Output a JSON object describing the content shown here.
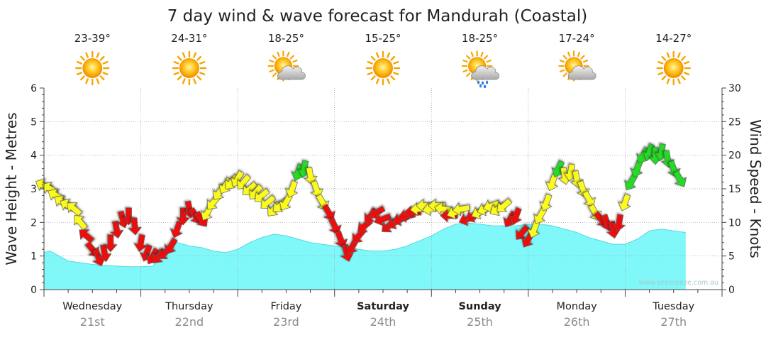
{
  "chart_data": {
    "type": "area",
    "title": "7 day wind & wave forecast for Mandurah (Coastal)",
    "ylabel": "Wave Height - Metres",
    "y2label": "Wind Speed - Knots",
    "watermark": "www.seabreeze.com.au",
    "ylim": [
      0,
      6
    ],
    "y2lim": [
      0,
      30
    ],
    "y_ticks": [
      "0",
      "1",
      "2",
      "3",
      "4",
      "5",
      "6"
    ],
    "y2_ticks": [
      "0",
      "5",
      "10",
      "15",
      "20",
      "25",
      "30"
    ],
    "grid": true,
    "days": [
      {
        "name": "Wednesday",
        "date": "21st",
        "temp": "23-39°",
        "weather": "sun-icon",
        "bold": false
      },
      {
        "name": "Thursday",
        "date": "22nd",
        "temp": "24-31°",
        "weather": "sun-icon",
        "bold": false
      },
      {
        "name": "Friday",
        "date": "23rd",
        "temp": "18-25°",
        "weather": "sun-cloud-icon",
        "bold": false
      },
      {
        "name": "Saturday",
        "date": "24th",
        "temp": "15-25°",
        "weather": "sun-icon",
        "bold": true
      },
      {
        "name": "Sunday",
        "date": "25th",
        "temp": "18-25°",
        "weather": "sun-rain-icon",
        "bold": true
      },
      {
        "name": "Monday",
        "date": "26th",
        "temp": "17-24°",
        "weather": "sun-cloud-icon",
        "bold": false
      },
      {
        "name": "Tuesday",
        "date": "27th",
        "temp": "14-27°",
        "weather": "sun-icon",
        "bold": false
      }
    ],
    "wave_height": [
      [
        0,
        1.1
      ],
      [
        0.25,
        1.15
      ],
      [
        0.5,
        1.05
      ],
      [
        0.75,
        0.95
      ],
      [
        1,
        0.85
      ],
      [
        1.5,
        0.8
      ],
      [
        2,
        0.75
      ],
      [
        2.5,
        0.72
      ],
      [
        3,
        0.7
      ],
      [
        3.5,
        0.68
      ],
      [
        4,
        0.68
      ],
      [
        4.5,
        0.7
      ],
      [
        4.75,
        0.95
      ],
      [
        5,
        1.2
      ],
      [
        5.25,
        1.35
      ],
      [
        5.5,
        1.4
      ],
      [
        6,
        1.3
      ],
      [
        6.5,
        1.25
      ],
      [
        7,
        1.15
      ],
      [
        7.5,
        1.1
      ],
      [
        8,
        1.2
      ],
      [
        8.5,
        1.4
      ],
      [
        9,
        1.55
      ],
      [
        9.5,
        1.65
      ],
      [
        10,
        1.6
      ],
      [
        10.5,
        1.5
      ],
      [
        11,
        1.4
      ],
      [
        11.5,
        1.35
      ],
      [
        12,
        1.3
      ],
      [
        12.5,
        1.25
      ],
      [
        13,
        1.2
      ],
      [
        13.5,
        1.15
      ],
      [
        14,
        1.15
      ],
      [
        14.5,
        1.2
      ],
      [
        15,
        1.3
      ],
      [
        15.5,
        1.45
      ],
      [
        16,
        1.6
      ],
      [
        16.5,
        1.8
      ],
      [
        17,
        1.95
      ],
      [
        17.5,
        1.98
      ],
      [
        18,
        1.95
      ],
      [
        18.5,
        1.9
      ],
      [
        19,
        1.9
      ],
      [
        19.5,
        1.9
      ],
      [
        20,
        1.95
      ],
      [
        20.5,
        1.95
      ],
      [
        21,
        1.9
      ],
      [
        21.5,
        1.8
      ],
      [
        22,
        1.7
      ],
      [
        22.5,
        1.55
      ],
      [
        23,
        1.45
      ],
      [
        23.5,
        1.35
      ],
      [
        24,
        1.35
      ],
      [
        24.5,
        1.5
      ],
      [
        25,
        1.75
      ],
      [
        25.5,
        1.8
      ],
      [
        26,
        1.75
      ],
      [
        26.5,
        1.7
      ]
    ],
    "wind": [
      {
        "t": 0,
        "spd": 15.5,
        "dir": 295,
        "c": "yellow"
      },
      {
        "t": 0.25,
        "spd": 15,
        "dir": 300,
        "c": "yellow"
      },
      {
        "t": 0.5,
        "spd": 14,
        "dir": 300,
        "c": "yellow"
      },
      {
        "t": 0.75,
        "spd": 13,
        "dir": 305,
        "c": "yellow"
      },
      {
        "t": 1,
        "spd": 12.5,
        "dir": 300,
        "c": "yellow"
      },
      {
        "t": 1.25,
        "spd": 12,
        "dir": 310,
        "c": "yellow"
      },
      {
        "t": 1.5,
        "spd": 10,
        "dir": 320,
        "c": "yellow"
      },
      {
        "t": 1.75,
        "spd": 8,
        "dir": 310,
        "c": "red"
      },
      {
        "t": 2,
        "spd": 6,
        "dir": 140,
        "c": "red"
      },
      {
        "t": 2.25,
        "spd": 4.8,
        "dir": 160,
        "c": "red"
      },
      {
        "t": 2.5,
        "spd": 5.5,
        "dir": 170,
        "c": "red"
      },
      {
        "t": 2.75,
        "spd": 7,
        "dir": 180,
        "c": "red"
      },
      {
        "t": 3,
        "spd": 9,
        "dir": 170,
        "c": "red"
      },
      {
        "t": 3.25,
        "spd": 10.5,
        "dir": 165,
        "c": "red"
      },
      {
        "t": 3.5,
        "spd": 11,
        "dir": 180,
        "c": "red"
      },
      {
        "t": 3.75,
        "spd": 9.5,
        "dir": 175,
        "c": "red"
      },
      {
        "t": 4,
        "spd": 7,
        "dir": 190,
        "c": "red"
      },
      {
        "t": 4.25,
        "spd": 5.5,
        "dir": 200,
        "c": "red"
      },
      {
        "t": 4.5,
        "spd": 5,
        "dir": 210,
        "c": "red"
      },
      {
        "t": 4.75,
        "spd": 5,
        "dir": 220,
        "c": "red"
      },
      {
        "t": 5,
        "spd": 5.5,
        "dir": 230,
        "c": "red"
      },
      {
        "t": 5.25,
        "spd": 6.5,
        "dir": 210,
        "c": "red"
      },
      {
        "t": 5.5,
        "spd": 9,
        "dir": 200,
        "c": "red"
      },
      {
        "t": 5.75,
        "spd": 11,
        "dir": 180,
        "c": "red"
      },
      {
        "t": 6,
        "spd": 12,
        "dir": 170,
        "c": "red"
      },
      {
        "t": 6.25,
        "spd": 11,
        "dir": 150,
        "c": "red"
      },
      {
        "t": 6.5,
        "spd": 10.5,
        "dir": 145,
        "c": "red"
      },
      {
        "t": 6.75,
        "spd": 11.5,
        "dir": 210,
        "c": "yellow"
      },
      {
        "t": 7,
        "spd": 13,
        "dir": 220,
        "c": "yellow"
      },
      {
        "t": 7.25,
        "spd": 14.5,
        "dir": 215,
        "c": "yellow"
      },
      {
        "t": 7.5,
        "spd": 15.5,
        "dir": 210,
        "c": "yellow"
      },
      {
        "t": 7.75,
        "spd": 16,
        "dir": 220,
        "c": "yellow"
      },
      {
        "t": 8,
        "spd": 16.5,
        "dir": 210,
        "c": "yellow"
      },
      {
        "t": 8.25,
        "spd": 16,
        "dir": 220,
        "c": "yellow"
      },
      {
        "t": 8.5,
        "spd": 15,
        "dir": 230,
        "c": "yellow"
      },
      {
        "t": 8.75,
        "spd": 14.5,
        "dir": 220,
        "c": "yellow"
      },
      {
        "t": 9,
        "spd": 14,
        "dir": 230,
        "c": "yellow"
      },
      {
        "t": 9.25,
        "spd": 13,
        "dir": 230,
        "c": "yellow"
      },
      {
        "t": 9.5,
        "spd": 12,
        "dir": 220,
        "c": "yellow"
      },
      {
        "t": 9.75,
        "spd": 12.5,
        "dir": 230,
        "c": "yellow"
      },
      {
        "t": 10,
        "spd": 13,
        "dir": 210,
        "c": "yellow"
      },
      {
        "t": 10.25,
        "spd": 15,
        "dir": 200,
        "c": "yellow"
      },
      {
        "t": 10.5,
        "spd": 17.5,
        "dir": 200,
        "c": "green"
      },
      {
        "t": 10.75,
        "spd": 18,
        "dir": 190,
        "c": "green"
      },
      {
        "t": 11,
        "spd": 17,
        "dir": 170,
        "c": "yellow"
      },
      {
        "t": 11.25,
        "spd": 15,
        "dir": 160,
        "c": "yellow"
      },
      {
        "t": 11.5,
        "spd": 13,
        "dir": 150,
        "c": "yellow"
      },
      {
        "t": 11.75,
        "spd": 11.5,
        "dir": 150,
        "c": "red"
      },
      {
        "t": 12,
        "spd": 9.5,
        "dir": 155,
        "c": "red"
      },
      {
        "t": 12.25,
        "spd": 7.5,
        "dir": 160,
        "c": "red"
      },
      {
        "t": 12.5,
        "spd": 5.5,
        "dir": 165,
        "c": "red"
      },
      {
        "t": 12.75,
        "spd": 6.5,
        "dir": 210,
        "c": "red"
      },
      {
        "t": 13,
        "spd": 8,
        "dir": 220,
        "c": "red"
      },
      {
        "t": 13.25,
        "spd": 9.5,
        "dir": 230,
        "c": "red"
      },
      {
        "t": 13.5,
        "spd": 11,
        "dir": 220,
        "c": "red"
      },
      {
        "t": 13.75,
        "spd": 11.5,
        "dir": 240,
        "c": "red"
      },
      {
        "t": 14,
        "spd": 10.5,
        "dir": 250,
        "c": "red"
      },
      {
        "t": 14.25,
        "spd": 9.5,
        "dir": 230,
        "c": "red"
      },
      {
        "t": 14.5,
        "spd": 10,
        "dir": 240,
        "c": "red"
      },
      {
        "t": 14.75,
        "spd": 10.5,
        "dir": 250,
        "c": "red"
      },
      {
        "t": 15,
        "spd": 11,
        "dir": 260,
        "c": "red"
      },
      {
        "t": 15.25,
        "spd": 11.5,
        "dir": 270,
        "c": "red"
      },
      {
        "t": 15.5,
        "spd": 12,
        "dir": 265,
        "c": "yellow"
      },
      {
        "t": 15.75,
        "spd": 12.5,
        "dir": 270,
        "c": "yellow"
      },
      {
        "t": 16,
        "spd": 12,
        "dir": 260,
        "c": "yellow"
      },
      {
        "t": 16.25,
        "spd": 12.5,
        "dir": 270,
        "c": "yellow"
      },
      {
        "t": 16.5,
        "spd": 12,
        "dir": 280,
        "c": "yellow"
      },
      {
        "t": 16.75,
        "spd": 11,
        "dir": 270,
        "c": "red"
      },
      {
        "t": 17,
        "spd": 11.5,
        "dir": 250,
        "c": "yellow"
      },
      {
        "t": 17.25,
        "spd": 12,
        "dir": 260,
        "c": "yellow"
      },
      {
        "t": 17.5,
        "spd": 10.5,
        "dir": 250,
        "c": "red"
      },
      {
        "t": 17.75,
        "spd": 11,
        "dir": 240,
        "c": "red"
      },
      {
        "t": 18,
        "spd": 11.5,
        "dir": 245,
        "c": "yellow"
      },
      {
        "t": 18.25,
        "spd": 12,
        "dir": 250,
        "c": "yellow"
      },
      {
        "t": 18.5,
        "spd": 12.5,
        "dir": 250,
        "c": "yellow"
      },
      {
        "t": 18.75,
        "spd": 12,
        "dir": 240,
        "c": "yellow"
      },
      {
        "t": 19,
        "spd": 12.5,
        "dir": 230,
        "c": "yellow"
      },
      {
        "t": 19.25,
        "spd": 10.5,
        "dir": 210,
        "c": "red"
      },
      {
        "t": 19.5,
        "spd": 11,
        "dir": 200,
        "c": "red"
      },
      {
        "t": 19.75,
        "spd": 8.5,
        "dir": 220,
        "c": "red"
      },
      {
        "t": 20,
        "spd": 7.5,
        "dir": 210,
        "c": "red"
      },
      {
        "t": 20.25,
        "spd": 9,
        "dir": 200,
        "c": "yellow"
      },
      {
        "t": 20.5,
        "spd": 11,
        "dir": 210,
        "c": "yellow"
      },
      {
        "t": 20.75,
        "spd": 13,
        "dir": 200,
        "c": "yellow"
      },
      {
        "t": 21,
        "spd": 16,
        "dir": 200,
        "c": "yellow"
      },
      {
        "t": 21.25,
        "spd": 18,
        "dir": 205,
        "c": "green"
      },
      {
        "t": 21.5,
        "spd": 17,
        "dir": 170,
        "c": "yellow"
      },
      {
        "t": 21.75,
        "spd": 17.5,
        "dir": 190,
        "c": "yellow"
      },
      {
        "t": 22,
        "spd": 16.5,
        "dir": 170,
        "c": "yellow"
      },
      {
        "t": 22.25,
        "spd": 15,
        "dir": 160,
        "c": "yellow"
      },
      {
        "t": 22.5,
        "spd": 13.5,
        "dir": 150,
        "c": "yellow"
      },
      {
        "t": 22.75,
        "spd": 11.5,
        "dir": 150,
        "c": "yellow"
      },
      {
        "t": 23,
        "spd": 10.5,
        "dir": 140,
        "c": "red"
      },
      {
        "t": 23.25,
        "spd": 10,
        "dir": 160,
        "c": "red"
      },
      {
        "t": 23.5,
        "spd": 9,
        "dir": 170,
        "c": "red"
      },
      {
        "t": 23.75,
        "spd": 10,
        "dir": 190,
        "c": "red"
      },
      {
        "t": 24,
        "spd": 13,
        "dir": 200,
        "c": "yellow"
      },
      {
        "t": 24.25,
        "spd": 16,
        "dir": 210,
        "c": "green"
      },
      {
        "t": 24.5,
        "spd": 18,
        "dir": 200,
        "c": "green"
      },
      {
        "t": 24.75,
        "spd": 20,
        "dir": 210,
        "c": "green"
      },
      {
        "t": 25,
        "spd": 20.5,
        "dir": 200,
        "c": "green"
      },
      {
        "t": 25.25,
        "spd": 20,
        "dir": 180,
        "c": "green"
      },
      {
        "t": 25.5,
        "spd": 20.5,
        "dir": 190,
        "c": "green"
      },
      {
        "t": 25.75,
        "spd": 19.5,
        "dir": 170,
        "c": "green"
      },
      {
        "t": 26,
        "spd": 18,
        "dir": 160,
        "c": "green"
      },
      {
        "t": 26.25,
        "spd": 16.5,
        "dir": 150,
        "c": "green"
      }
    ],
    "colors": {
      "wave_fill": "#80f8fa",
      "wave_edge": "#55d8e0",
      "red": "#ee1111",
      "yellow": "#fbfb1e",
      "green": "#22dd22",
      "grid": "#9a9a9a",
      "plot_bg": "#ffffff"
    }
  }
}
